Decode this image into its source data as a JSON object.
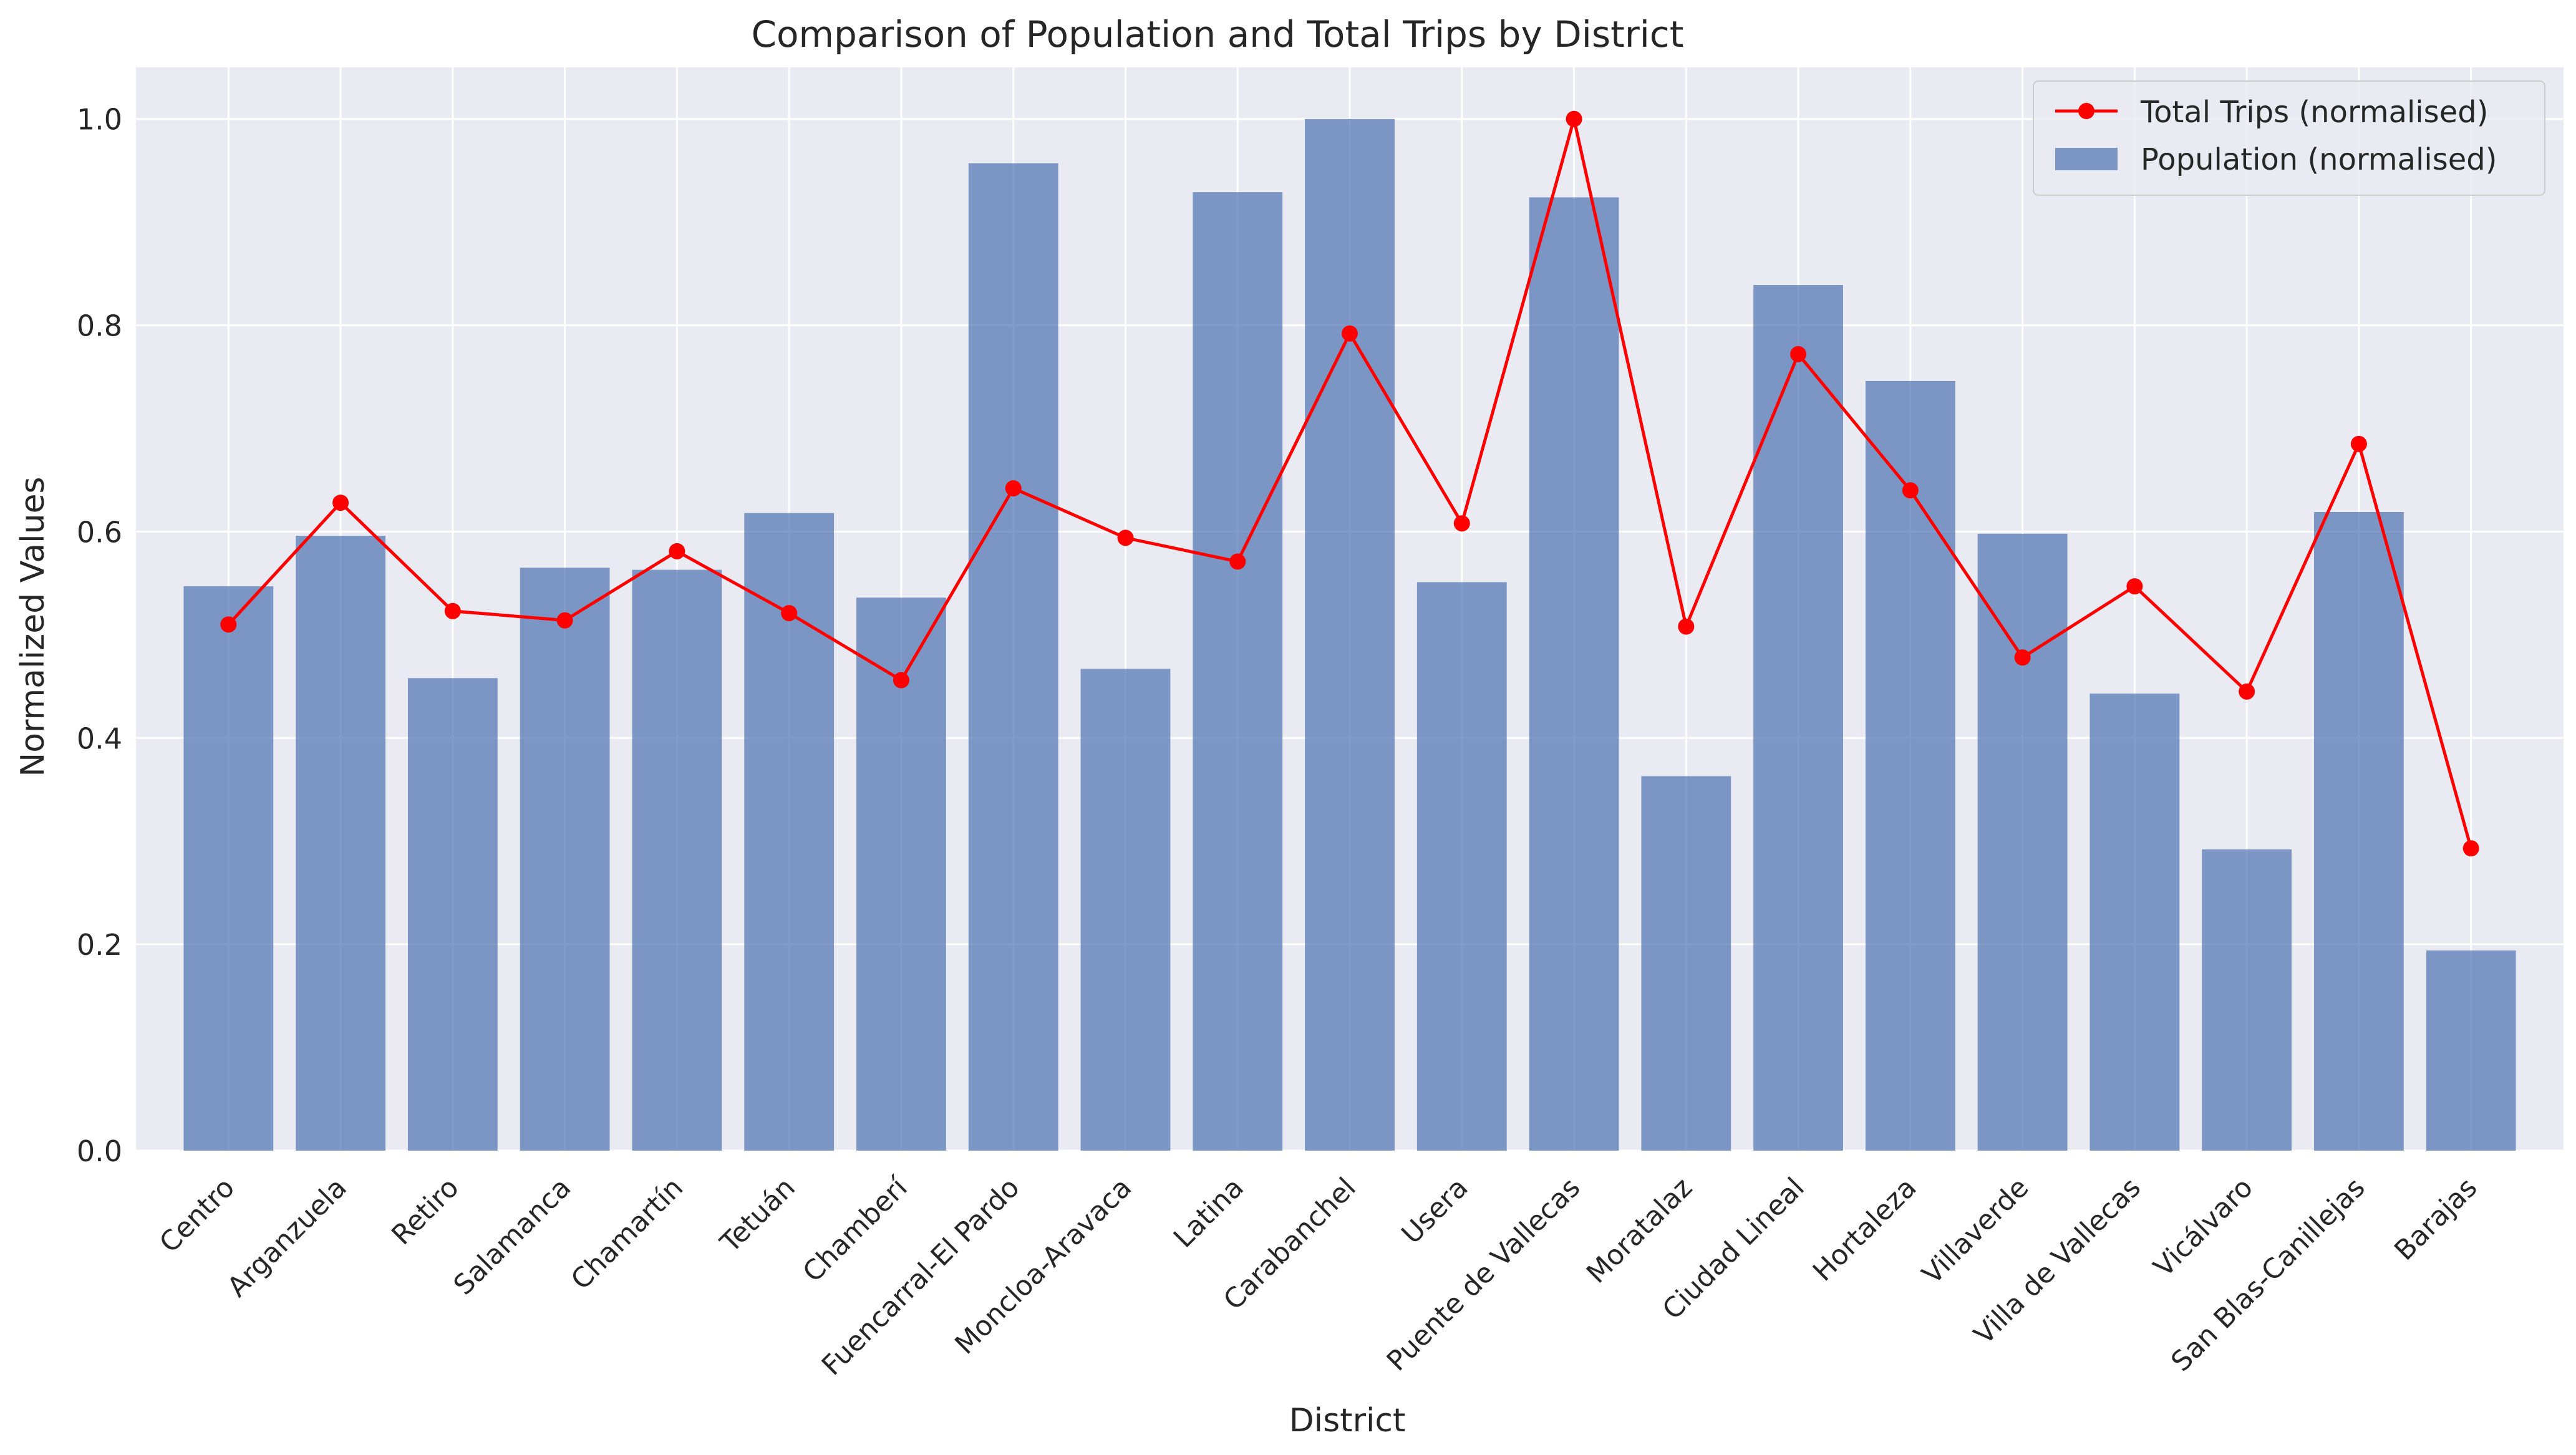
{
  "chart_data": {
    "type": "bar",
    "title": "Comparison of Population and Total Trips by District",
    "xlabel": "District",
    "ylabel": "Normalized Values",
    "ylim": [
      0,
      1.05
    ],
    "yticks": [
      "0.0",
      "0.2",
      "0.4",
      "0.6",
      "0.8",
      "1.0"
    ],
    "grid": true,
    "legend_position": "top-right",
    "categories": [
      "Centro",
      "Arganzuela",
      "Retiro",
      "Salamanca",
      "Chamartín",
      "Tetuán",
      "Chamberí",
      "Fuencarral-El Pardo",
      "Moncloa-Aravaca",
      "Latina",
      "Carabanchel",
      "Usera",
      "Puente de Vallecas",
      "Moratalaz",
      "Ciudad Lineal",
      "Hortaleza",
      "Villaverde",
      "Villa de Vallecas",
      "Vicálvaro",
      "San Blas-Canillejas",
      "Barajas"
    ],
    "series": [
      {
        "name": "Population (normalised)",
        "kind": "bar",
        "color": "#4c72b0",
        "values": [
          0.547,
          0.596,
          0.458,
          0.565,
          0.563,
          0.618,
          0.536,
          0.957,
          0.467,
          0.929,
          1.0,
          0.551,
          0.924,
          0.363,
          0.839,
          0.746,
          0.598,
          0.443,
          0.292,
          0.619,
          0.194
        ]
      },
      {
        "name": "Total Trips (normalised)",
        "kind": "line",
        "color": "#ff0000",
        "values": [
          0.51,
          0.628,
          0.523,
          0.514,
          0.581,
          0.521,
          0.456,
          0.642,
          0.594,
          0.571,
          0.792,
          0.608,
          1.0,
          0.508,
          0.772,
          0.64,
          0.478,
          0.547,
          0.445,
          0.685,
          0.293
        ]
      }
    ]
  }
}
